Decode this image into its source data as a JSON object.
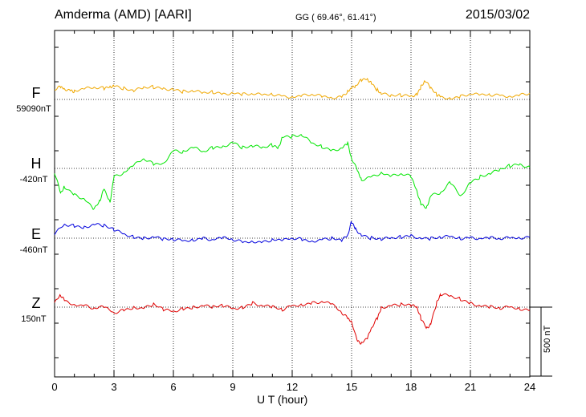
{
  "header": {
    "station": "Amderma (AMD)  [AARI]",
    "coords": "GG ( 69.46°,  61.41°)",
    "date": "2015/03/02"
  },
  "chart_data": {
    "type": "line",
    "xlabel": "U T (hour)",
    "xlim": [
      0,
      24
    ],
    "xticks": [
      0,
      3,
      6,
      9,
      12,
      15,
      18,
      21,
      24
    ],
    "tick_labels": [
      "0",
      "3",
      "6",
      "9",
      "12",
      "15",
      "18",
      "21",
      "24"
    ],
    "y_scale_bar": "500 nT",
    "grid": true,
    "series": [
      {
        "name": "F",
        "baseline_label": "59090nT",
        "color": "#f0a800",
        "x": [
          0,
          0.3,
          0.5,
          0.8,
          1.0,
          1.5,
          2.0,
          2.5,
          2.8,
          3.0,
          3.5,
          4.0,
          4.5,
          5.0,
          5.5,
          6.0,
          6.5,
          7.0,
          7.5,
          8.0,
          8.5,
          9.0,
          9.5,
          10.0,
          10.5,
          11.0,
          11.5,
          12.0,
          12.5,
          13.0,
          13.5,
          14.0,
          14.5,
          14.8,
          15.0,
          15.2,
          15.5,
          15.8,
          16.0,
          16.3,
          16.5,
          17.0,
          17.5,
          18.0,
          18.3,
          18.5,
          18.7,
          19.0,
          19.3,
          19.5,
          20.0,
          20.5,
          21.0,
          21.5,
          22.0,
          22.5,
          23.0,
          23.5,
          24.0
        ],
        "y": [
          70,
          90,
          80,
          65,
          60,
          75,
          85,
          80,
          95,
          100,
          80,
          60,
          85,
          90,
          80,
          75,
          55,
          60,
          45,
          55,
          40,
          50,
          35,
          40,
          30,
          40,
          25,
          20,
          25,
          35,
          20,
          15,
          20,
          60,
          80,
          95,
          140,
          150,
          120,
          70,
          40,
          25,
          30,
          25,
          40,
          90,
          135,
          80,
          35,
          20,
          10,
          20,
          40,
          30,
          35,
          30,
          25,
          30,
          45
        ]
      },
      {
        "name": "H",
        "baseline_label": "-420nT",
        "color": "#00e600",
        "x": [
          0,
          0.3,
          0.5,
          1.0,
          1.5,
          2.0,
          2.3,
          2.5,
          2.8,
          3.0,
          3.5,
          4.0,
          4.5,
          5.0,
          5.5,
          6.0,
          6.5,
          7.0,
          7.5,
          8.0,
          8.5,
          9.0,
          9.5,
          10.0,
          10.5,
          11.0,
          11.3,
          11.5,
          12.0,
          12.5,
          13.0,
          13.5,
          14.0,
          14.5,
          14.8,
          15.0,
          15.3,
          15.5,
          16.0,
          16.5,
          17.0,
          17.5,
          18.0,
          18.3,
          18.5,
          18.8,
          19.0,
          19.5,
          20.0,
          20.5,
          21.0,
          21.5,
          22.0,
          22.5,
          23.0,
          23.5,
          24.0
        ],
        "y": [
          -30,
          -180,
          -130,
          -190,
          -220,
          -300,
          -230,
          -150,
          -240,
          -60,
          -30,
          20,
          70,
          30,
          40,
          130,
          120,
          150,
          120,
          150,
          160,
          190,
          150,
          160,
          150,
          170,
          150,
          230,
          230,
          240,
          180,
          160,
          130,
          150,
          180,
          70,
          -20,
          -80,
          -60,
          -30,
          -60,
          -40,
          -60,
          -160,
          -260,
          -280,
          -200,
          -180,
          -100,
          -200,
          -100,
          -60,
          -40,
          -10,
          20,
          30,
          10
        ]
      },
      {
        "name": "E",
        "baseline_label": "-460nT",
        "color": "#0000dd",
        "x": [
          0,
          0.5,
          1.0,
          1.5,
          2.0,
          2.5,
          3.0,
          3.5,
          4.0,
          4.5,
          5.0,
          5.5,
          6.0,
          6.5,
          7.0,
          7.5,
          8.0,
          8.5,
          9.0,
          9.5,
          10.0,
          10.5,
          11.0,
          11.5,
          12.0,
          12.5,
          13.0,
          13.5,
          14.0,
          14.5,
          14.8,
          15.0,
          15.2,
          15.5,
          16.0,
          16.5,
          17.0,
          17.5,
          18.0,
          18.5,
          19.0,
          19.5,
          20.0,
          20.5,
          21.0,
          21.5,
          22.0,
          22.5,
          23.0,
          23.5,
          24.0
        ],
        "y": [
          30,
          100,
          90,
          80,
          100,
          90,
          60,
          30,
          10,
          0,
          10,
          -10,
          -10,
          -20,
          -10,
          0,
          -10,
          0,
          -10,
          -30,
          -20,
          -30,
          -10,
          -20,
          0,
          -10,
          -20,
          -10,
          0,
          -20,
          20,
          120,
          70,
          20,
          0,
          -10,
          0,
          10,
          20,
          0,
          -5,
          5,
          10,
          0,
          5,
          0,
          0,
          -5,
          0,
          5,
          10
        ]
      },
      {
        "name": "Z",
        "baseline_label": "150nT",
        "color": "#e00000",
        "x": [
          0,
          0.3,
          0.5,
          1.0,
          1.5,
          2.0,
          2.5,
          3.0,
          3.5,
          4.0,
          4.5,
          5.0,
          5.5,
          6.0,
          6.5,
          7.0,
          7.5,
          8.0,
          8.5,
          9.0,
          9.5,
          10.0,
          10.5,
          11.0,
          11.5,
          12.0,
          12.5,
          13.0,
          13.5,
          14.0,
          14.5,
          14.8,
          15.0,
          15.3,
          15.5,
          15.8,
          16.0,
          16.3,
          16.5,
          17.0,
          17.5,
          18.0,
          18.3,
          18.5,
          18.8,
          19.0,
          19.3,
          19.5,
          20.0,
          20.5,
          21.0,
          21.5,
          22.0,
          22.5,
          23.0,
          23.5,
          24.0
        ],
        "y": [
          30,
          90,
          50,
          20,
          10,
          -10,
          0,
          -40,
          -20,
          0,
          -10,
          20,
          -20,
          -30,
          -10,
          0,
          10,
          0,
          10,
          -10,
          0,
          30,
          10,
          0,
          -20,
          10,
          20,
          30,
          40,
          20,
          -40,
          -80,
          -100,
          -250,
          -260,
          -230,
          -150,
          -80,
          0,
          10,
          20,
          10,
          0,
          -80,
          -150,
          -120,
          30,
          90,
          80,
          60,
          30,
          10,
          0,
          -10,
          0,
          -10,
          -20
        ]
      }
    ]
  }
}
